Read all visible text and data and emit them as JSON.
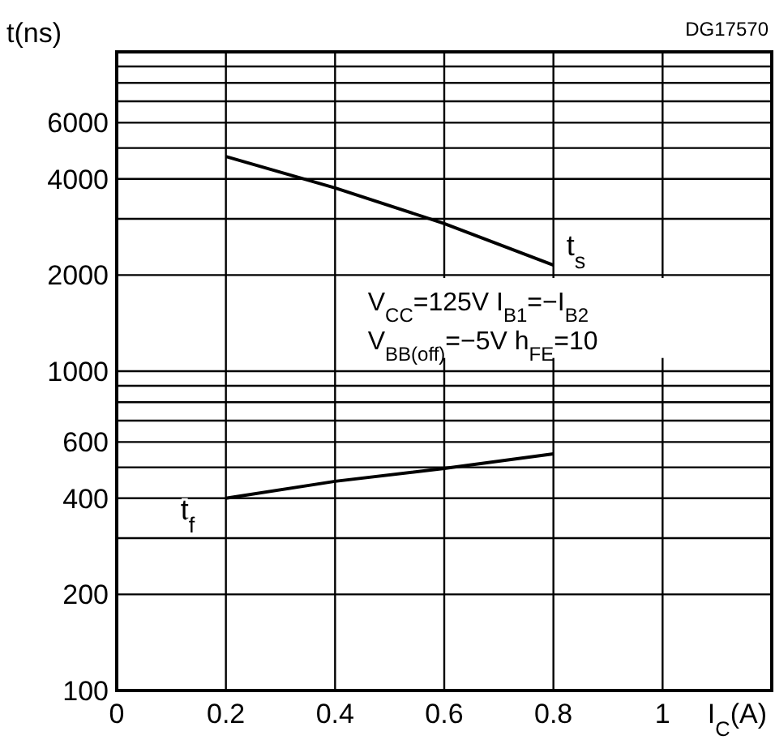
{
  "chart_data": {
    "type": "line",
    "xlabel": "I$_{C}$(A)",
    "ylabel": "t(ns)",
    "log": "y",
    "grid": true,
    "xlim": [
      0,
      1.2
    ],
    "xticks": [
      0,
      0.2,
      0.4,
      0.6,
      0.8,
      1
    ],
    "ylim": [
      100,
      10000
    ],
    "yticks": [
      100,
      200,
      {
        "value": 300,
        "label": null
      },
      400,
      {
        "value": 500,
        "label": null
      },
      600,
      {
        "value": 700,
        "label": null
      },
      {
        "value": 800,
        "label": null
      },
      {
        "value": 900,
        "label": null
      },
      1000,
      2000,
      {
        "value": 3000,
        "label": null
      },
      4000,
      {
        "value": 5000,
        "label": null
      },
      6000,
      {
        "value": 7000,
        "label": null
      },
      {
        "value": 8000,
        "label": null
      },
      {
        "value": 9000,
        "label": null
      },
      {
        "value": 10000,
        "label": null
      }
    ],
    "x": [
      0.2,
      0.4,
      0.6,
      0.8
    ],
    "series": [
      {
        "name": "t$_{s}$",
        "color": "#000000",
        "values": [
          4700,
          3750,
          2900,
          2150
        ]
      },
      {
        "name": "t$_{f}$",
        "color": "#000000",
        "values": [
          400,
          452,
          496,
          551
        ]
      }
    ],
    "annotations": [
      "DG17570",
      "V$_{CC}$=125V  I$_{B1}$=−I$_{B2}$",
      "V$_{BB(off)}$=−5V  h$_{FE}$=10"
    ]
  }
}
